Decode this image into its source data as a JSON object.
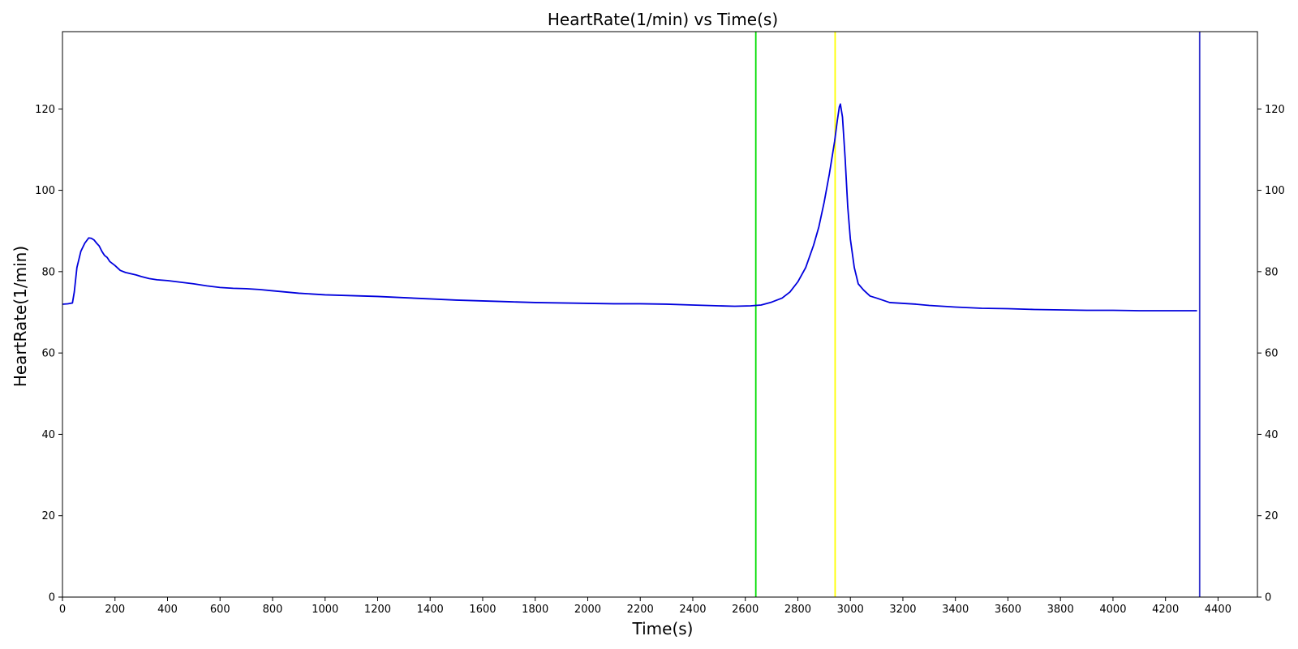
{
  "chart_data": {
    "type": "line",
    "title": "HeartRate(1/min) vs Time(s)",
    "xlabel": "Time(s)",
    "ylabel": "HeartRate(1/min)",
    "xlim": [
      0,
      4550
    ],
    "ylim": [
      0,
      139
    ],
    "xticks": [
      0,
      200,
      400,
      600,
      800,
      1000,
      1200,
      1400,
      1600,
      1800,
      2000,
      2200,
      2400,
      2600,
      2800,
      3000,
      3200,
      3400,
      3600,
      3800,
      4000,
      4200,
      4400
    ],
    "yticks": [
      0,
      20,
      40,
      60,
      80,
      100,
      120
    ],
    "right_axis_ticks": true,
    "grid": false,
    "series": [
      {
        "color": "#0000dd",
        "x": [
          0,
          20,
          38,
          45,
          55,
          70,
          85,
          100,
          110,
          120,
          130,
          140,
          150,
          160,
          170,
          180,
          200,
          220,
          240,
          260,
          280,
          300,
          330,
          360,
          400,
          450,
          500,
          550,
          600,
          650,
          700,
          750,
          800,
          850,
          900,
          950,
          1000,
          1050,
          1100,
          1150,
          1200,
          1300,
          1400,
          1500,
          1600,
          1700,
          1800,
          1900,
          2000,
          2100,
          2200,
          2300,
          2400,
          2500,
          2560,
          2620,
          2660,
          2700,
          2740,
          2770,
          2800,
          2830,
          2860,
          2880,
          2900,
          2920,
          2940,
          2950,
          2958,
          2962,
          2970,
          2980,
          2990,
          3000,
          3015,
          3030,
          3050,
          3075,
          3100,
          3150,
          3200,
          3250,
          3300,
          3400,
          3500,
          3600,
          3700,
          3800,
          3900,
          4000,
          4100,
          4200,
          4320
        ],
        "y": [
          72,
          72.1,
          72.3,
          75,
          81,
          85,
          87,
          88.3,
          88.2,
          87.8,
          87,
          86.3,
          85,
          84,
          83.5,
          82.5,
          81.5,
          80.3,
          79.8,
          79.5,
          79.2,
          78.8,
          78.3,
          78,
          77.8,
          77.4,
          77,
          76.5,
          76.1,
          75.9,
          75.8,
          75.6,
          75.3,
          75,
          74.7,
          74.5,
          74.3,
          74.2,
          74.1,
          74,
          73.9,
          73.6,
          73.3,
          73,
          72.8,
          72.6,
          72.4,
          72.3,
          72.2,
          72.1,
          72.1,
          72,
          71.8,
          71.6,
          71.5,
          71.6,
          71.8,
          72.5,
          73.5,
          75,
          77.5,
          81,
          86.5,
          91,
          97,
          104,
          112,
          117,
          120.5,
          121.2,
          118,
          108,
          96,
          88,
          81,
          77,
          75.5,
          74,
          73.5,
          72.4,
          72.2,
          72,
          71.7,
          71.3,
          71,
          70.9,
          70.7,
          70.6,
          70.5,
          70.5,
          70.4,
          70.4,
          70.4
        ]
      }
    ],
    "vertical_markers": [
      {
        "x": 2640,
        "color": "#00dd00"
      },
      {
        "x": 2942,
        "color": "#ffff00"
      },
      {
        "x": 4330,
        "color": "#3333cc"
      }
    ]
  }
}
